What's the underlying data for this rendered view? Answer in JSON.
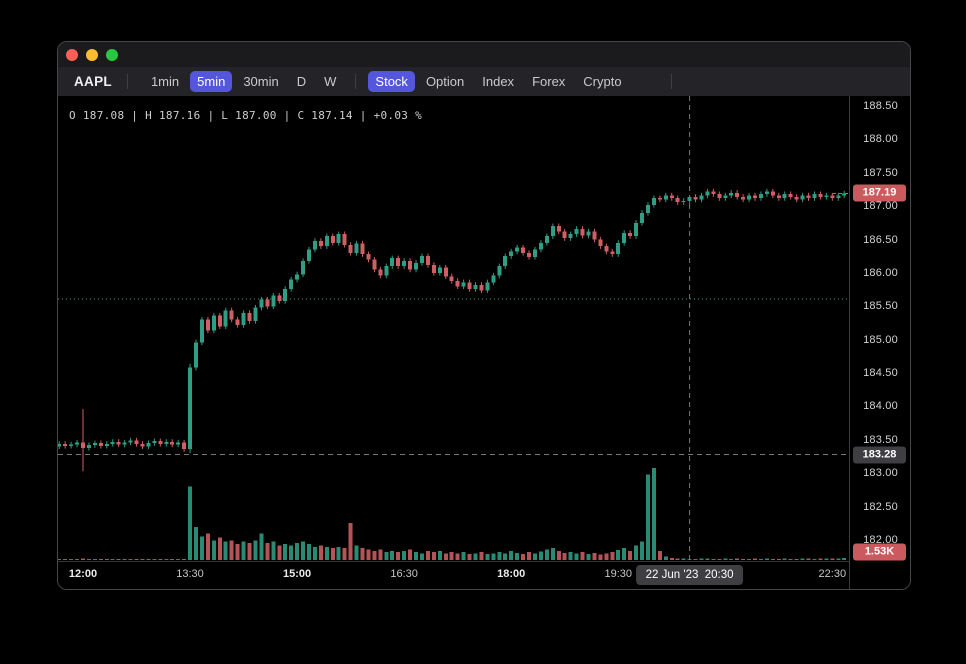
{
  "window": {
    "traffic_lights": [
      "close",
      "minimize",
      "zoom"
    ]
  },
  "toolbar": {
    "symbol": "AAPL",
    "accent_color": "#5457db",
    "timeframes": [
      {
        "label": "1min",
        "active": false
      },
      {
        "label": "5min",
        "active": true
      },
      {
        "label": "30min",
        "active": false
      },
      {
        "label": "D",
        "active": false
      },
      {
        "label": "W",
        "active": false
      }
    ],
    "markets": [
      {
        "label": "Stock",
        "active": true
      },
      {
        "label": "Option",
        "active": false
      },
      {
        "label": "Index",
        "active": false
      },
      {
        "label": "Forex",
        "active": false
      },
      {
        "label": "Crypto",
        "active": false
      }
    ]
  },
  "info_bar": {
    "text": "O 187.08 | H 187.16 | L 187.00 | C 187.14 | +0.03 %"
  },
  "price_axis": {
    "labels": [
      "188.50",
      "188.00",
      "187.50",
      "187.00",
      "186.50",
      "186.00",
      "185.50",
      "185.00",
      "184.50",
      "184.00",
      "183.50",
      "183.00",
      "182.50",
      "182.00"
    ],
    "last_price_badge": {
      "text": "187.19",
      "color": "#cb5a5e"
    },
    "crosshair_badge": {
      "text": "183.28",
      "color": "#3e3e43"
    },
    "volume_badge": {
      "text": "1.53K",
      "color": "#cb5a5e"
    }
  },
  "time_axis": {
    "labels": [
      {
        "text": "12:00",
        "bold": true
      },
      {
        "text": "13:30",
        "bold": false
      },
      {
        "text": "15:00",
        "bold": true
      },
      {
        "text": "16:30",
        "bold": false
      },
      {
        "text": "18:00",
        "bold": true
      },
      {
        "text": "19:30",
        "bold": false
      },
      {
        "text": "22:30",
        "bold": false
      }
    ],
    "crosshair_badge": {
      "text": "22 Jun '23  20:30"
    }
  },
  "crosshair": {
    "time": "20:30",
    "price": 183.28
  },
  "chart_data": {
    "type": "candlestick",
    "symbol": "AAPL",
    "interval": "5min",
    "title": "AAPL 5min candlestick with volume",
    "start_time": "11:35",
    "step_minutes": 5,
    "price_range_shown": [
      182.0,
      188.5
    ],
    "grid": false,
    "up_color": "#2f9e84",
    "down_color": "#cf5f63",
    "last_price": 187.19,
    "reference_line_price": 185.61,
    "hovered_candle": {
      "time": "20:30",
      "o": 187.08,
      "h": 187.16,
      "l": 187.0,
      "c": 187.14,
      "change_pct": "+0.03 %"
    },
    "closes": [
      183.4,
      183.44,
      183.41,
      183.43,
      183.46,
      183.38,
      183.42,
      183.45,
      183.41,
      183.44,
      183.47,
      183.43,
      183.46,
      183.49,
      183.44,
      183.4,
      183.45,
      183.48,
      183.44,
      183.47,
      183.43,
      183.46,
      183.36,
      184.58,
      184.96,
      185.3,
      185.14,
      185.36,
      185.2,
      185.44,
      185.3,
      185.22,
      185.4,
      185.28,
      185.48,
      185.6,
      185.5,
      185.66,
      185.58,
      185.76,
      185.9,
      185.98,
      186.18,
      186.35,
      186.48,
      186.4,
      186.55,
      186.45,
      186.58,
      186.42,
      186.3,
      186.44,
      186.28,
      186.2,
      186.05,
      185.96,
      186.1,
      186.22,
      186.1,
      186.18,
      186.05,
      186.15,
      186.25,
      186.12,
      186.0,
      186.08,
      185.95,
      185.88,
      185.8,
      185.86,
      185.76,
      185.82,
      185.74,
      185.86,
      185.96,
      186.1,
      186.25,
      186.32,
      186.38,
      186.3,
      186.24,
      186.35,
      186.45,
      186.55,
      186.7,
      186.62,
      186.52,
      186.58,
      186.66,
      186.56,
      186.62,
      186.5,
      186.4,
      186.32,
      186.28,
      186.45,
      186.6,
      186.55,
      186.75,
      186.9,
      187.02,
      187.12,
      187.1,
      187.16,
      187.12,
      187.06,
      187.08,
      187.14,
      187.1,
      187.16,
      187.22,
      187.18,
      187.12,
      187.16,
      187.2,
      187.14,
      187.1,
      187.16,
      187.12,
      187.18,
      187.22,
      187.16,
      187.12,
      187.18,
      187.14,
      187.1,
      187.16,
      187.12,
      187.18,
      187.14,
      187.16,
      187.12,
      187.16,
      187.19
    ],
    "volumes_k": [
      0.4,
      0.3,
      0.5,
      0.5,
      0.4,
      1.2,
      0.5,
      0.4,
      0.3,
      0.5,
      0.4,
      0.3,
      0.5,
      0.6,
      0.4,
      0.3,
      0.5,
      0.4,
      0.6,
      0.5,
      0.4,
      0.6,
      0.9,
      56,
      25,
      18,
      20,
      15,
      17,
      14,
      15,
      12,
      14,
      13,
      15,
      20,
      13,
      14,
      11,
      12,
      11,
      13,
      14,
      12,
      10,
      11,
      10,
      9,
      10,
      9,
      28,
      11,
      9,
      8,
      7,
      8,
      6,
      7,
      6,
      7,
      8,
      6,
      5,
      7,
      6,
      7,
      5,
      6,
      5,
      6,
      4.5,
      5,
      6,
      4.5,
      5,
      6,
      5,
      7,
      5.5,
      4.5,
      6,
      5,
      6.5,
      8,
      9,
      7,
      5.5,
      6,
      5,
      6,
      4.5,
      5.5,
      4,
      5,
      6,
      7.5,
      9,
      7,
      11,
      14,
      65,
      70,
      7,
      2.5,
      1.5,
      1.2,
      1.0,
      0.9,
      0.8,
      1.0,
      1.2,
      0.9,
      0.8,
      1.0,
      0.9,
      1.1,
      0.8,
      0.9,
      1.0,
      0.8,
      1.1,
      0.9,
      0.8,
      1.0,
      0.9,
      0.8,
      1.0,
      1.2,
      0.9,
      1.1,
      1.0,
      1.3,
      1.1,
      1.53
    ],
    "wick_overrides": {
      "5": {
        "h": 183.96,
        "l": 183.03
      },
      "23": {
        "h": 184.64,
        "l": 183.3
      },
      "107": {
        "h": 187.16,
        "l": 187.0
      }
    }
  }
}
